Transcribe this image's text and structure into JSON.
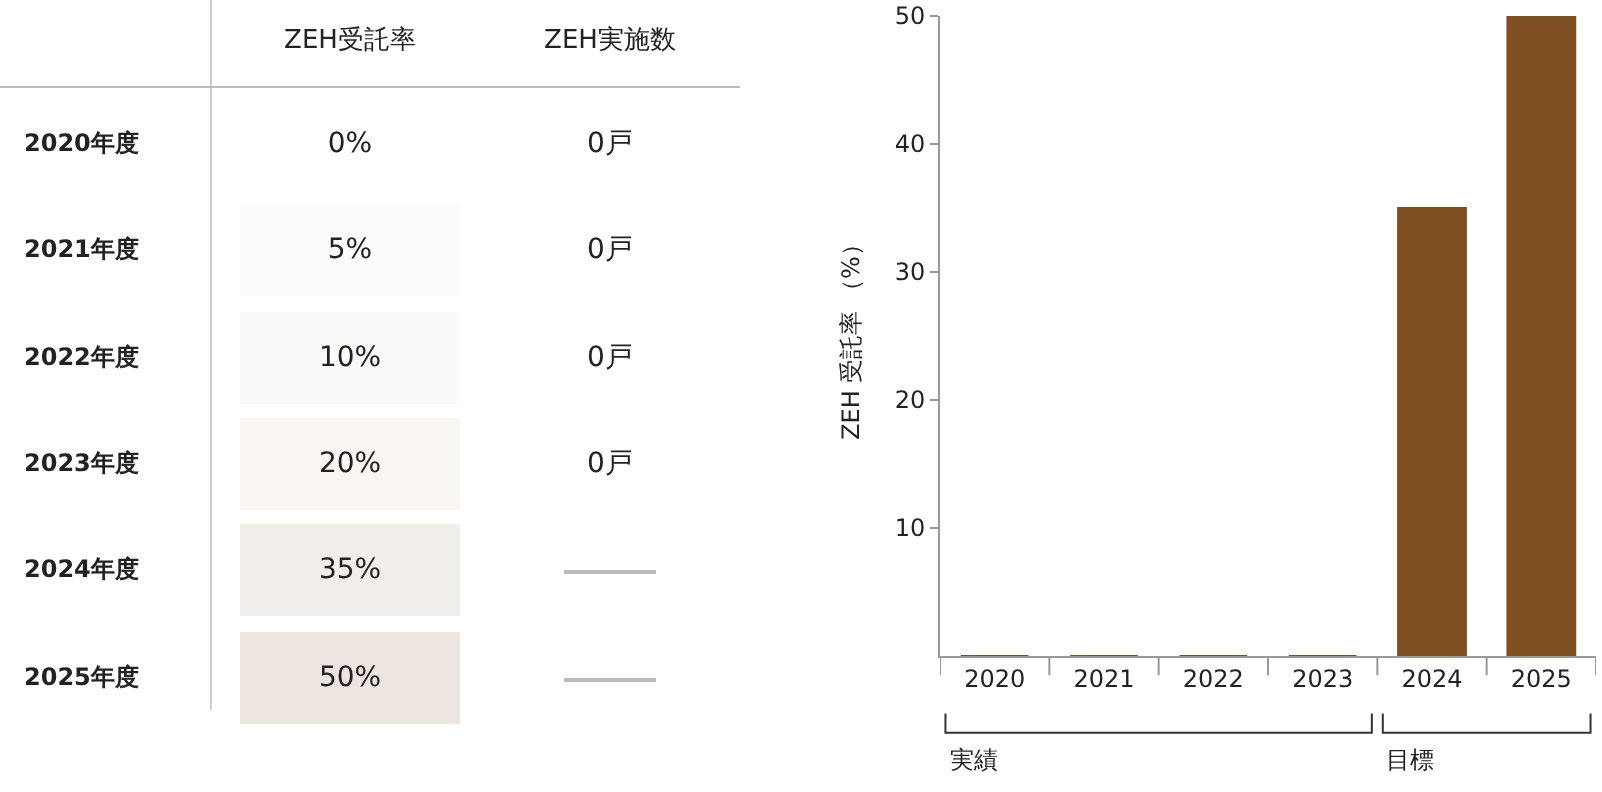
{
  "chart_data": [
    {
      "type": "heatmap",
      "categories": [
        "ZEH受託率",
        "ZEH実施数"
      ],
      "y_categories": [
        "2020年度",
        "2021年度",
        "2022年度",
        "2023年度",
        "2024年度",
        "2025年度"
      ],
      "cells": [
        [
          0,
          0
        ],
        [
          5,
          0
        ],
        [
          10,
          0
        ],
        [
          20,
          0
        ],
        [
          35,
          null
        ],
        [
          50,
          null
        ]
      ],
      "cell_labels": [
        [
          "0%",
          "0戸"
        ],
        [
          "5%",
          "0戸"
        ],
        [
          "10%",
          "0戸"
        ],
        [
          "20%",
          "0戸"
        ],
        [
          "35%",
          null
        ],
        [
          "50%",
          null
        ]
      ]
    },
    {
      "type": "bar",
      "categories": [
        "2020",
        "2021",
        "2022",
        "2023",
        "2024",
        "2025"
      ],
      "values": [
        0,
        0,
        0,
        0,
        35,
        50
      ],
      "color": "#7f4f22",
      "ylabel": "ZEH 受託率 （%）",
      "ylim": [
        0,
        50
      ],
      "yticks": [
        10,
        20,
        30,
        40,
        50
      ],
      "grid": false,
      "annotations": [
        "実績",
        "目標"
      ]
    }
  ]
}
